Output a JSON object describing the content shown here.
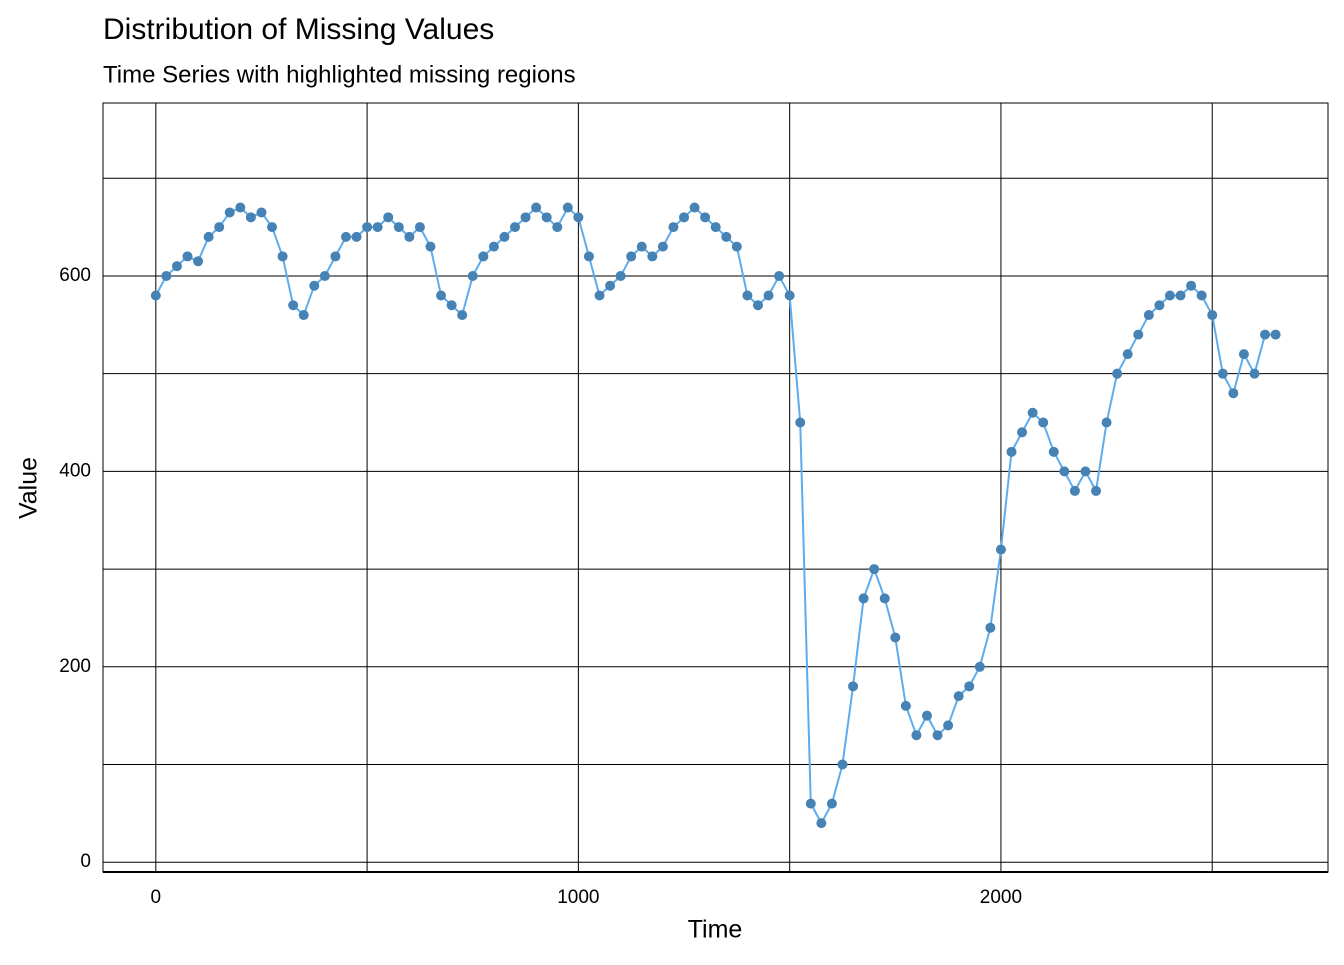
{
  "chart_data": {
    "type": "line",
    "title": "Distribution of Missing Values",
    "subtitle": "Time Series with highlighted missing regions",
    "x_label": "Time",
    "y_label": "Value",
    "x": [
      0,
      25,
      50,
      75,
      100,
      125,
      150,
      175,
      200,
      225,
      250,
      275,
      300,
      325,
      350,
      375,
      400,
      425,
      450,
      475,
      500,
      525,
      550,
      575,
      600,
      625,
      650,
      675,
      700,
      725,
      750,
      775,
      800,
      825,
      850,
      875,
      900,
      925,
      950,
      975,
      1000,
      1025,
      1050,
      1075,
      1100,
      1125,
      1150,
      1175,
      1200,
      1225,
      1250,
      1275,
      1300,
      1325,
      1350,
      1375,
      1400,
      1425,
      1450,
      1475,
      1500,
      1525,
      1550,
      1575,
      1600,
      1625,
      1650,
      1675,
      1700,
      1725,
      1750,
      1775,
      1800,
      1825,
      1850,
      1875,
      1900,
      1925,
      1950,
      1975,
      2000,
      2025,
      2050,
      2075,
      2100,
      2125,
      2150,
      2175,
      2200,
      2225,
      2250,
      2275,
      2300,
      2325,
      2350,
      2375,
      2400,
      2425,
      2450,
      2475,
      2500,
      2525,
      2550,
      2575,
      2600,
      2625,
      2650
    ],
    "values": [
      580,
      600,
      610,
      620,
      615,
      640,
      650,
      665,
      670,
      660,
      665,
      650,
      620,
      570,
      560,
      590,
      600,
      620,
      640,
      640,
      650,
      650,
      660,
      650,
      640,
      650,
      630,
      580,
      570,
      560,
      600,
      620,
      630,
      640,
      650,
      660,
      670,
      660,
      650,
      670,
      660,
      620,
      580,
      590,
      600,
      620,
      630,
      620,
      630,
      650,
      660,
      670,
      660,
      650,
      640,
      630,
      580,
      570,
      580,
      600,
      580,
      450,
      60,
      40,
      60,
      100,
      180,
      270,
      300,
      270,
      230,
      160,
      130,
      150,
      130,
      140,
      170,
      180,
      200,
      240,
      320,
      420,
      440,
      460,
      450,
      420,
      400,
      380,
      400,
      380,
      450,
      500,
      520,
      540,
      560,
      570,
      580,
      580,
      590,
      580,
      560,
      500,
      480,
      520,
      500,
      540,
      540
    ],
    "line_color": "#5CACEE",
    "point_color": "#4682B4",
    "xlim": [
      -125,
      2774
    ],
    "ylim": [
      -10,
      777
    ],
    "xticks": [
      0,
      1000,
      2000
    ],
    "yticks": [
      0,
      200,
      400,
      600
    ],
    "x_minor_grid": [
      500,
      1500,
      2500
    ],
    "y_minor_grid": [
      100,
      300,
      500,
      700
    ],
    "grid": true
  }
}
